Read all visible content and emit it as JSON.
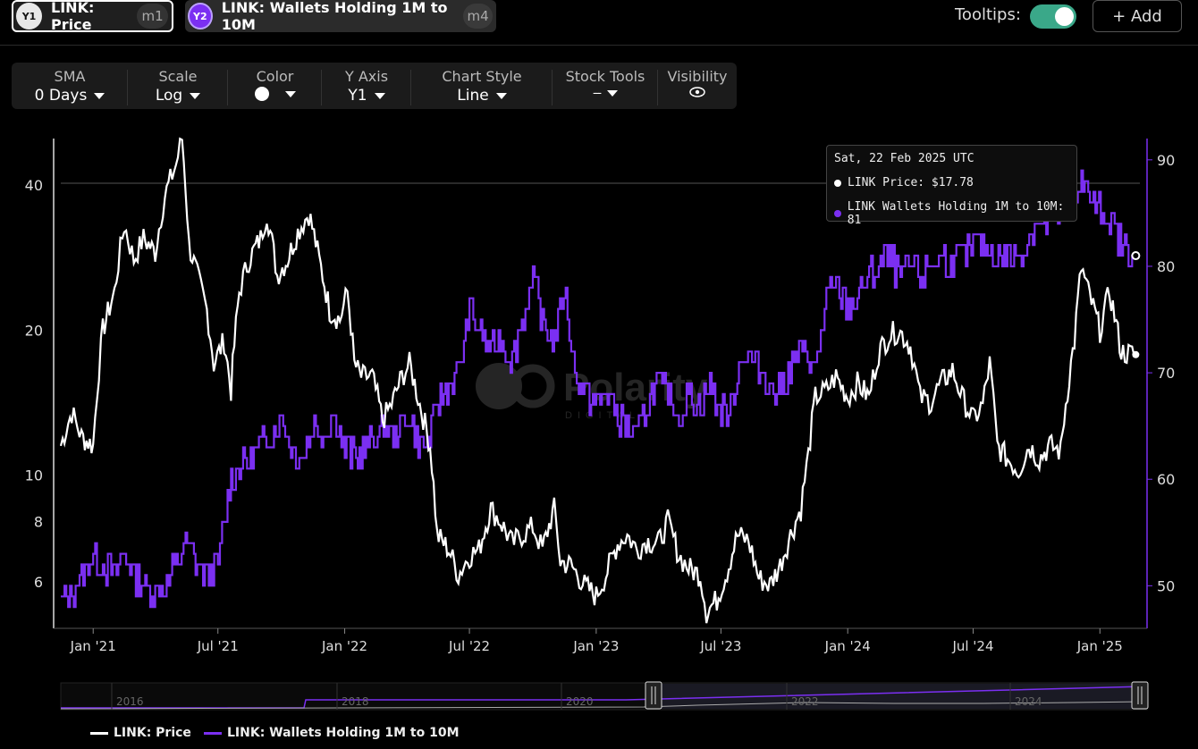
{
  "header": {
    "pill1": {
      "badge": "Y1",
      "label": "LINK: Price",
      "tag": "m1"
    },
    "pill2": {
      "badge": "Y2",
      "label": "LINK: Wallets Holding 1M to 10M",
      "tag": "m4"
    },
    "tooltips_label": "Tooltips:",
    "tooltips_on": true,
    "add_label": "+ Add"
  },
  "toolbar": [
    {
      "title": "SMA",
      "value": "0 Days"
    },
    {
      "title": "Scale",
      "value": "Log"
    },
    {
      "title": "Color",
      "value": ""
    },
    {
      "title": "Y Axis",
      "value": "Y1"
    },
    {
      "title": "Chart Style",
      "value": "Line"
    },
    {
      "title": "Stock Tools",
      "value": "---"
    },
    {
      "title": "Visibility",
      "value": ""
    }
  ],
  "watermark": {
    "main": "Polarity",
    "sub": "DIGITAL"
  },
  "tooltip": {
    "date": "Sat, 22 Feb 2025 UTC",
    "price_line": "LINK Price: $17.78",
    "wallets_line": "LINK Wallets Holding 1M to 10M: 81"
  },
  "legend": {
    "price": "LINK: Price",
    "wallets": "LINK: Wallets Holding 1M to 10M"
  },
  "navigator": {
    "years": [
      "2016",
      "2018",
      "2020",
      "2022",
      "2024"
    ]
  },
  "colors": {
    "price": "#ffffff",
    "wallets": "#7b2ff2",
    "background": "#000000",
    "toggle": "#3aa889"
  },
  "chart_data": {
    "type": "line",
    "x_ticks": [
      "Jan '21",
      "Jul '21",
      "Jan '22",
      "Jul '22",
      "Jan '23",
      "Jul '23",
      "Jan '24",
      "Jul '24",
      "Jan '25"
    ],
    "y_left": {
      "scale": "log",
      "ticks": [
        6,
        8,
        10,
        20,
        40
      ],
      "range": [
        4.8,
        50
      ]
    },
    "y_right": {
      "scale": "linear",
      "ticks": [
        50,
        60,
        70,
        80,
        90
      ],
      "range": [
        46,
        92
      ]
    },
    "x_range": [
      "2020-11-15",
      "2025-02-28"
    ],
    "series": [
      {
        "name": "LINK: Price",
        "axis": "left",
        "color": "#ffffff",
        "points": [
          [
            "2020-11-15",
            11.5
          ],
          [
            "2020-12-01",
            13.5
          ],
          [
            "2020-12-15",
            12.0
          ],
          [
            "2021-01-01",
            11.5
          ],
          [
            "2021-01-15",
            20
          ],
          [
            "2021-02-01",
            24
          ],
          [
            "2021-02-15",
            33
          ],
          [
            "2021-03-01",
            28
          ],
          [
            "2021-03-15",
            31
          ],
          [
            "2021-04-01",
            29
          ],
          [
            "2021-04-15",
            38
          ],
          [
            "2021-05-01",
            44
          ],
          [
            "2021-05-10",
            50
          ],
          [
            "2021-05-20",
            30
          ],
          [
            "2021-06-01",
            26
          ],
          [
            "2021-06-15",
            22
          ],
          [
            "2021-06-25",
            17
          ],
          [
            "2021-07-10",
            19
          ],
          [
            "2021-07-20",
            15
          ],
          [
            "2021-08-01",
            24
          ],
          [
            "2021-08-15",
            28
          ],
          [
            "2021-09-01",
            31
          ],
          [
            "2021-09-10",
            35
          ],
          [
            "2021-09-25",
            26
          ],
          [
            "2021-10-10",
            28
          ],
          [
            "2021-10-25",
            32
          ],
          [
            "2021-11-10",
            35
          ],
          [
            "2021-11-25",
            28
          ],
          [
            "2021-12-10",
            22
          ],
          [
            "2021-12-25",
            21
          ],
          [
            "2022-01-05",
            24
          ],
          [
            "2022-01-15",
            17
          ],
          [
            "2022-01-25",
            16
          ],
          [
            "2022-02-10",
            16
          ],
          [
            "2022-02-25",
            13
          ],
          [
            "2022-03-10",
            14
          ],
          [
            "2022-03-25",
            16
          ],
          [
            "2022-04-05",
            17
          ],
          [
            "2022-04-20",
            14
          ],
          [
            "2022-05-05",
            11.5
          ],
          [
            "2022-05-15",
            7.5
          ],
          [
            "2022-06-01",
            7.0
          ],
          [
            "2022-06-15",
            6.2
          ],
          [
            "2022-07-01",
            6.8
          ],
          [
            "2022-07-15",
            7.0
          ],
          [
            "2022-08-01",
            8.5
          ],
          [
            "2022-08-15",
            8.0
          ],
          [
            "2022-09-01",
            7.2
          ],
          [
            "2022-09-15",
            7.5
          ],
          [
            "2022-10-01",
            7.8
          ],
          [
            "2022-10-15",
            7.0
          ],
          [
            "2022-11-01",
            8.5
          ],
          [
            "2022-11-10",
            6.6
          ],
          [
            "2022-11-25",
            6.5
          ],
          [
            "2022-12-15",
            5.9
          ],
          [
            "2023-01-01",
            5.6
          ],
          [
            "2023-01-15",
            6.2
          ],
          [
            "2023-02-01",
            7.2
          ],
          [
            "2023-02-15",
            7.5
          ],
          [
            "2023-03-01",
            7.0
          ],
          [
            "2023-03-15",
            7.3
          ],
          [
            "2023-04-01",
            7.2
          ],
          [
            "2023-04-15",
            8.0
          ],
          [
            "2023-05-01",
            6.8
          ],
          [
            "2023-05-15",
            6.4
          ],
          [
            "2023-06-01",
            6.2
          ],
          [
            "2023-06-10",
            5.2
          ],
          [
            "2023-06-25",
            5.5
          ],
          [
            "2023-07-10",
            6.3
          ],
          [
            "2023-07-25",
            7.5
          ],
          [
            "2023-08-10",
            7.3
          ],
          [
            "2023-08-25",
            6.1
          ],
          [
            "2023-09-10",
            5.9
          ],
          [
            "2023-09-25",
            6.5
          ],
          [
            "2023-10-10",
            7.5
          ],
          [
            "2023-10-25",
            8.5
          ],
          [
            "2023-11-05",
            11
          ],
          [
            "2023-11-15",
            14.5
          ],
          [
            "2023-12-01",
            15
          ],
          [
            "2023-12-15",
            16
          ],
          [
            "2024-01-01",
            14.5
          ],
          [
            "2024-01-15",
            15.5
          ],
          [
            "2024-02-01",
            14.5
          ],
          [
            "2024-02-15",
            18
          ],
          [
            "2024-03-01",
            19.5
          ],
          [
            "2024-03-15",
            20
          ],
          [
            "2024-04-01",
            18.5
          ],
          [
            "2024-04-15",
            14.5
          ],
          [
            "2024-05-01",
            14.2
          ],
          [
            "2024-05-15",
            15.5
          ],
          [
            "2024-06-01",
            16.5
          ],
          [
            "2024-06-15",
            14.5
          ],
          [
            "2024-07-01",
            13.0
          ],
          [
            "2024-07-15",
            14
          ],
          [
            "2024-07-25",
            17
          ],
          [
            "2024-08-05",
            11.5
          ],
          [
            "2024-08-20",
            10.8
          ],
          [
            "2024-09-05",
            10.2
          ],
          [
            "2024-09-20",
            11.5
          ],
          [
            "2024-10-05",
            10.8
          ],
          [
            "2024-10-20",
            11.5
          ],
          [
            "2024-11-05",
            11.2
          ],
          [
            "2024-11-15",
            15
          ],
          [
            "2024-11-25",
            19
          ],
          [
            "2024-12-05",
            27
          ],
          [
            "2024-12-15",
            24
          ],
          [
            "2025-01-01",
            20
          ],
          [
            "2025-01-15",
            24
          ],
          [
            "2025-02-01",
            18
          ],
          [
            "2025-02-22",
            17.78
          ]
        ]
      },
      {
        "name": "LINK: Wallets Holding 1M to 10M",
        "axis": "right",
        "color": "#7b2ff2",
        "points": [
          [
            "2020-11-15",
            48.5
          ],
          [
            "2020-12-01",
            49.5
          ],
          [
            "2020-12-15",
            50.5
          ],
          [
            "2021-01-01",
            53
          ],
          [
            "2021-01-15",
            52
          ],
          [
            "2021-02-01",
            51
          ],
          [
            "2021-02-15",
            53
          ],
          [
            "2021-03-01",
            51
          ],
          [
            "2021-03-15",
            50
          ],
          [
            "2021-04-01",
            49.5
          ],
          [
            "2021-04-15",
            50
          ],
          [
            "2021-05-01",
            52
          ],
          [
            "2021-05-15",
            54
          ],
          [
            "2021-06-01",
            52
          ],
          [
            "2021-06-15",
            51
          ],
          [
            "2021-07-01",
            52
          ],
          [
            "2021-07-10",
            56
          ],
          [
            "2021-07-20",
            60
          ],
          [
            "2021-08-01",
            61
          ],
          [
            "2021-08-15",
            62
          ],
          [
            "2021-09-01",
            63
          ],
          [
            "2021-09-15",
            64
          ],
          [
            "2021-10-01",
            66
          ],
          [
            "2021-10-15",
            63
          ],
          [
            "2021-11-01",
            62
          ],
          [
            "2021-11-15",
            65
          ],
          [
            "2021-12-01",
            64
          ],
          [
            "2021-12-15",
            66
          ],
          [
            "2022-01-01",
            63
          ],
          [
            "2022-01-15",
            62
          ],
          [
            "2022-02-01",
            63
          ],
          [
            "2022-02-15",
            64
          ],
          [
            "2022-03-01",
            65
          ],
          [
            "2022-03-15",
            64
          ],
          [
            "2022-04-01",
            66
          ],
          [
            "2022-04-15",
            64
          ],
          [
            "2022-05-01",
            63
          ],
          [
            "2022-05-15",
            67
          ],
          [
            "2022-06-01",
            69
          ],
          [
            "2022-06-15",
            70
          ],
          [
            "2022-07-01",
            76
          ],
          [
            "2022-07-15",
            74
          ],
          [
            "2022-08-01",
            72
          ],
          [
            "2022-08-15",
            73
          ],
          [
            "2022-09-01",
            71
          ],
          [
            "2022-09-15",
            75
          ],
          [
            "2022-10-01",
            79
          ],
          [
            "2022-10-15",
            75
          ],
          [
            "2022-11-01",
            73
          ],
          [
            "2022-11-15",
            78
          ],
          [
            "2022-12-01",
            70
          ],
          [
            "2022-12-15",
            68
          ],
          [
            "2023-01-01",
            67
          ],
          [
            "2023-01-15",
            68
          ],
          [
            "2023-02-01",
            66
          ],
          [
            "2023-02-15",
            65
          ],
          [
            "2023-03-01",
            64
          ],
          [
            "2023-03-15",
            67
          ],
          [
            "2023-04-01",
            69
          ],
          [
            "2023-04-15",
            68
          ],
          [
            "2023-05-01",
            66
          ],
          [
            "2023-05-15",
            68
          ],
          [
            "2023-06-01",
            67
          ],
          [
            "2023-06-15",
            69
          ],
          [
            "2023-07-01",
            66
          ],
          [
            "2023-07-15",
            67
          ],
          [
            "2023-08-01",
            72
          ],
          [
            "2023-08-15",
            71
          ],
          [
            "2023-09-01",
            70
          ],
          [
            "2023-09-15",
            68
          ],
          [
            "2023-10-01",
            69
          ],
          [
            "2023-10-15",
            71
          ],
          [
            "2023-11-01",
            72
          ],
          [
            "2023-11-15",
            70
          ],
          [
            "2023-12-01",
            77
          ],
          [
            "2023-12-15",
            78
          ],
          [
            "2024-01-01",
            76
          ],
          [
            "2024-01-15",
            77
          ],
          [
            "2024-02-01",
            79
          ],
          [
            "2024-02-15",
            80
          ],
          [
            "2024-03-01",
            81
          ],
          [
            "2024-03-15",
            79
          ],
          [
            "2024-04-01",
            80
          ],
          [
            "2024-04-15",
            79
          ],
          [
            "2024-05-01",
            80
          ],
          [
            "2024-05-15",
            81
          ],
          [
            "2024-06-01",
            80
          ],
          [
            "2024-06-15",
            81
          ],
          [
            "2024-07-01",
            82
          ],
          [
            "2024-07-15",
            82
          ],
          [
            "2024-08-01",
            81
          ],
          [
            "2024-08-15",
            81
          ],
          [
            "2024-09-01",
            81
          ],
          [
            "2024-09-15",
            82
          ],
          [
            "2024-10-01",
            84
          ],
          [
            "2024-10-15",
            84
          ],
          [
            "2024-11-01",
            85
          ],
          [
            "2024-11-15",
            90
          ],
          [
            "2024-11-25",
            87
          ],
          [
            "2024-12-05",
            88
          ],
          [
            "2024-12-20",
            86
          ],
          [
            "2025-01-05",
            85
          ],
          [
            "2025-01-20",
            84
          ],
          [
            "2025-02-01",
            82
          ],
          [
            "2025-02-22",
            81
          ]
        ]
      }
    ]
  }
}
